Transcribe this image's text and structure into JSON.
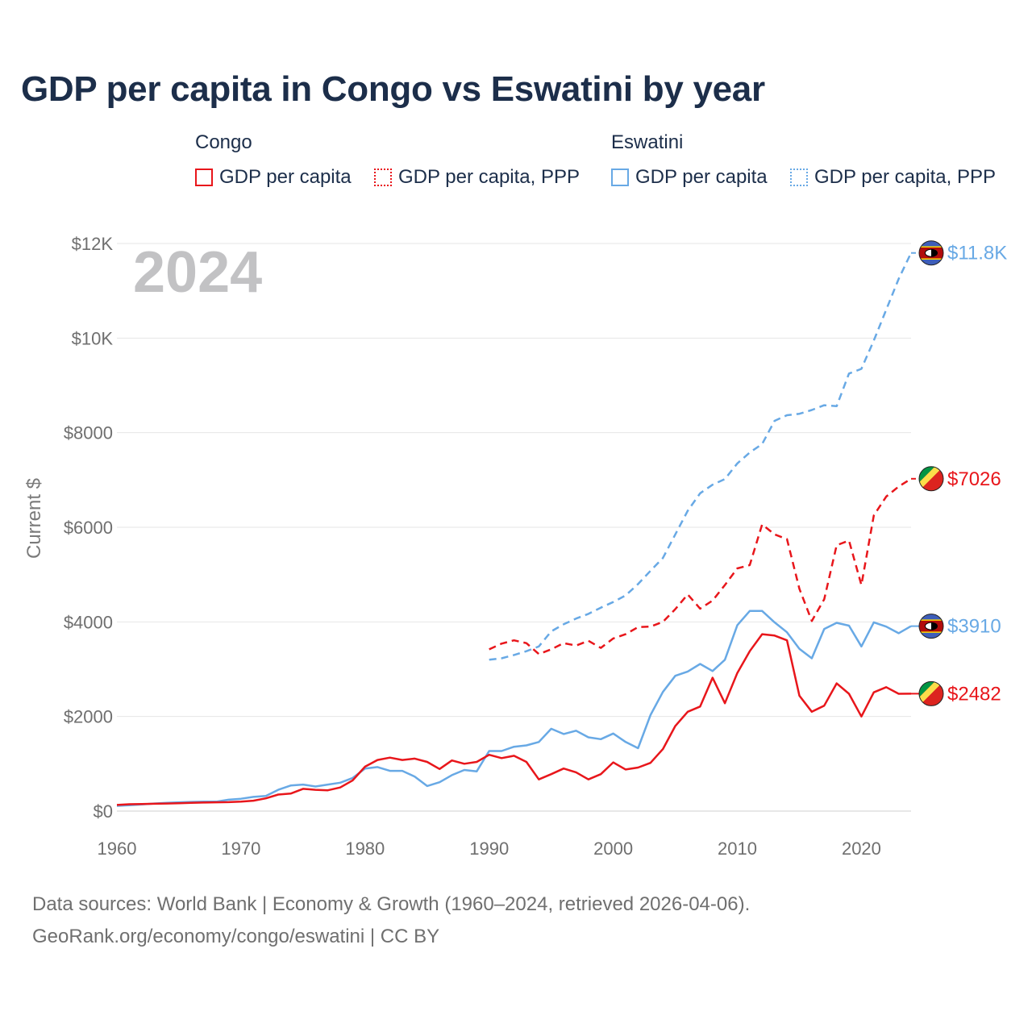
{
  "title": "GDP per capita in Congo vs Eswatini by year",
  "legend": {
    "groups": [
      {
        "name": "Congo",
        "items": [
          {
            "label": "GDP per capita",
            "color": "#e8161b",
            "style": "solid"
          },
          {
            "label": "GDP per capita, PPP",
            "color": "#e8161b",
            "style": "dotted"
          }
        ]
      },
      {
        "name": "Eswatini",
        "items": [
          {
            "label": "GDP per capita",
            "color": "#68a9e5",
            "style": "solid"
          },
          {
            "label": "GDP per capita, PPP",
            "color": "#68a9e5",
            "style": "dotted"
          }
        ]
      }
    ]
  },
  "year_watermark": "2024",
  "footer": {
    "line1": "Data sources: World Bank | Economy & Growth (1960–2024, retrieved 2026-04-06).",
    "line2": "GeoRank.org/economy/congo/eswatini | CC BY"
  },
  "chart_data": {
    "type": "line",
    "ylabel": "Current $",
    "xlabel": "",
    "xlim": [
      1960,
      2024
    ],
    "ylim": [
      0,
      12000
    ],
    "xticks": [
      1960,
      1970,
      1980,
      1990,
      2000,
      2010,
      2020
    ],
    "xtick_labels": [
      "1960",
      "1970",
      "1980",
      "1990",
      "2000",
      "2010",
      "2020"
    ],
    "yticks": [
      0,
      2000,
      4000,
      6000,
      8000,
      10000,
      12000
    ],
    "ytick_labels": [
      "$0",
      "$2000",
      "$4000",
      "$6000",
      "$8000",
      "$10K",
      "$12K"
    ],
    "grid": true,
    "series": [
      {
        "name": "Eswatini GDP per capita, PPP",
        "country": "Eswatini",
        "color": "#68a9e5",
        "dash": "dashed",
        "end_label": "$11.8K",
        "x": [
          1990,
          1991,
          1992,
          1993,
          1994,
          1995,
          1996,
          1997,
          1998,
          1999,
          2000,
          2001,
          2002,
          2003,
          2004,
          2005,
          2006,
          2007,
          2008,
          2009,
          2010,
          2011,
          2012,
          2013,
          2014,
          2015,
          2016,
          2017,
          2018,
          2019,
          2020,
          2021,
          2022,
          2023,
          2024
        ],
        "y": [
          3200,
          3230,
          3300,
          3380,
          3480,
          3800,
          3950,
          4070,
          4170,
          4300,
          4420,
          4560,
          4800,
          5080,
          5350,
          5850,
          6350,
          6720,
          6900,
          7020,
          7350,
          7580,
          7760,
          8250,
          8370,
          8400,
          8480,
          8580,
          8560,
          9250,
          9350,
          9950,
          10600,
          11250,
          11800
        ]
      },
      {
        "name": "Congo GDP per capita, PPP",
        "country": "Congo",
        "color": "#e8161b",
        "dash": "dashed",
        "end_label": "$7026",
        "x": [
          1990,
          1991,
          1992,
          1993,
          1994,
          1995,
          1996,
          1997,
          1998,
          1999,
          2000,
          2001,
          2002,
          2003,
          2004,
          2005,
          2006,
          2007,
          2008,
          2009,
          2010,
          2011,
          2012,
          2013,
          2014,
          2015,
          2016,
          2017,
          2018,
          2019,
          2020,
          2021,
          2022,
          2023,
          2024
        ],
        "y": [
          3420,
          3540,
          3610,
          3550,
          3320,
          3420,
          3550,
          3500,
          3600,
          3450,
          3650,
          3740,
          3890,
          3900,
          4000,
          4270,
          4580,
          4280,
          4450,
          4780,
          5130,
          5200,
          6060,
          5850,
          5750,
          4700,
          4020,
          4480,
          5620,
          5720,
          4780,
          6250,
          6650,
          6860,
          7026
        ]
      },
      {
        "name": "Eswatini GDP per capita",
        "country": "Eswatini",
        "color": "#68a9e5",
        "dash": "solid",
        "end_label": "$3910",
        "x": [
          1960,
          1961,
          1962,
          1963,
          1964,
          1965,
          1966,
          1967,
          1968,
          1969,
          1970,
          1971,
          1972,
          1973,
          1974,
          1975,
          1976,
          1977,
          1978,
          1979,
          1980,
          1981,
          1982,
          1983,
          1984,
          1985,
          1986,
          1987,
          1988,
          1989,
          1990,
          1991,
          1992,
          1993,
          1994,
          1995,
          1996,
          1997,
          1998,
          1999,
          2000,
          2001,
          2002,
          2003,
          2004,
          2005,
          2006,
          2007,
          2008,
          2009,
          2010,
          2011,
          2012,
          2013,
          2014,
          2015,
          2016,
          2017,
          2018,
          2019,
          2020,
          2021,
          2022,
          2023,
          2024
        ],
        "y": [
          110,
          125,
          140,
          160,
          175,
          185,
          195,
          200,
          200,
          240,
          260,
          300,
          320,
          450,
          540,
          560,
          520,
          560,
          600,
          700,
          900,
          930,
          850,
          850,
          730,
          530,
          610,
          760,
          870,
          840,
          1270,
          1270,
          1360,
          1390,
          1460,
          1740,
          1630,
          1700,
          1560,
          1520,
          1640,
          1460,
          1330,
          2030,
          2520,
          2860,
          2950,
          3110,
          2960,
          3200,
          3930,
          4230,
          4230,
          3990,
          3780,
          3430,
          3230,
          3850,
          3980,
          3920,
          3480,
          3990,
          3900,
          3760,
          3910
        ]
      },
      {
        "name": "Congo GDP per capita",
        "country": "Congo",
        "color": "#e8161b",
        "dash": "solid",
        "end_label": "$2482",
        "x": [
          1960,
          1961,
          1962,
          1963,
          1964,
          1965,
          1966,
          1967,
          1968,
          1969,
          1970,
          1971,
          1972,
          1973,
          1974,
          1975,
          1976,
          1977,
          1978,
          1979,
          1980,
          1981,
          1982,
          1983,
          1984,
          1985,
          1986,
          1987,
          1988,
          1989,
          1990,
          1991,
          1992,
          1993,
          1994,
          1995,
          1996,
          1997,
          1998,
          1999,
          2000,
          2001,
          2002,
          2003,
          2004,
          2005,
          2006,
          2007,
          2008,
          2009,
          2010,
          2011,
          2012,
          2013,
          2014,
          2015,
          2016,
          2017,
          2018,
          2019,
          2020,
          2021,
          2022,
          2023,
          2024
        ],
        "y": [
          130,
          145,
          150,
          155,
          160,
          165,
          175,
          180,
          185,
          190,
          200,
          220,
          270,
          350,
          370,
          470,
          450,
          440,
          500,
          650,
          940,
          1080,
          1130,
          1080,
          1110,
          1040,
          890,
          1070,
          1000,
          1040,
          1190,
          1120,
          1170,
          1040,
          670,
          780,
          900,
          820,
          670,
          780,
          1030,
          880,
          920,
          1020,
          1310,
          1800,
          2100,
          2210,
          2820,
          2280,
          2920,
          3380,
          3740,
          3710,
          3610,
          2440,
          2100,
          2230,
          2700,
          2480,
          2000,
          2510,
          2620,
          2480,
          2482
        ]
      }
    ]
  }
}
